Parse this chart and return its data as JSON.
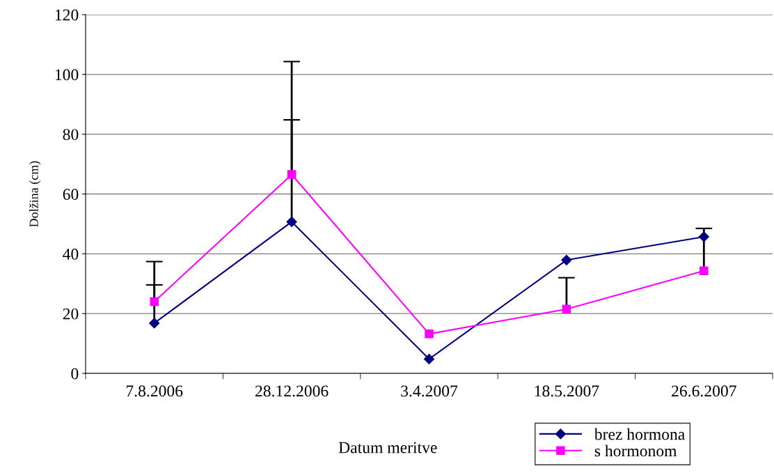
{
  "chart_data": {
    "type": "line",
    "xlabel": "Datum meritve",
    "ylabel": "Dolžina (cm)",
    "categories": [
      "7.8.2006",
      "28.12.2006",
      "3.4.2007",
      "18.5.2007",
      "26.6.2007"
    ],
    "series": [
      {
        "name": "brez hormona",
        "color": "#000080",
        "marker": "diamond",
        "values": [
          16.8,
          50.7,
          4.8,
          37.9,
          45.7
        ],
        "errors": [
          [
            16.8,
            29.6
          ],
          [
            50.7,
            84.8
          ],
          null,
          null,
          null
        ]
      },
      {
        "name": "s hormonom",
        "color": "#ff00ff",
        "marker": "square",
        "values": [
          24.0,
          66.5,
          13.2,
          21.5,
          34.3
        ],
        "errors": [
          [
            24.0,
            37.4
          ],
          [
            66.5,
            104.3
          ],
          null,
          [
            21.5,
            32.0
          ],
          [
            34.3,
            48.5
          ]
        ]
      }
    ],
    "ylim": [
      0,
      120
    ],
    "yticks": [
      0,
      20,
      40,
      60,
      80,
      100,
      120
    ],
    "grid": "y",
    "legend": "bottom right",
    "line_style": "solid"
  }
}
